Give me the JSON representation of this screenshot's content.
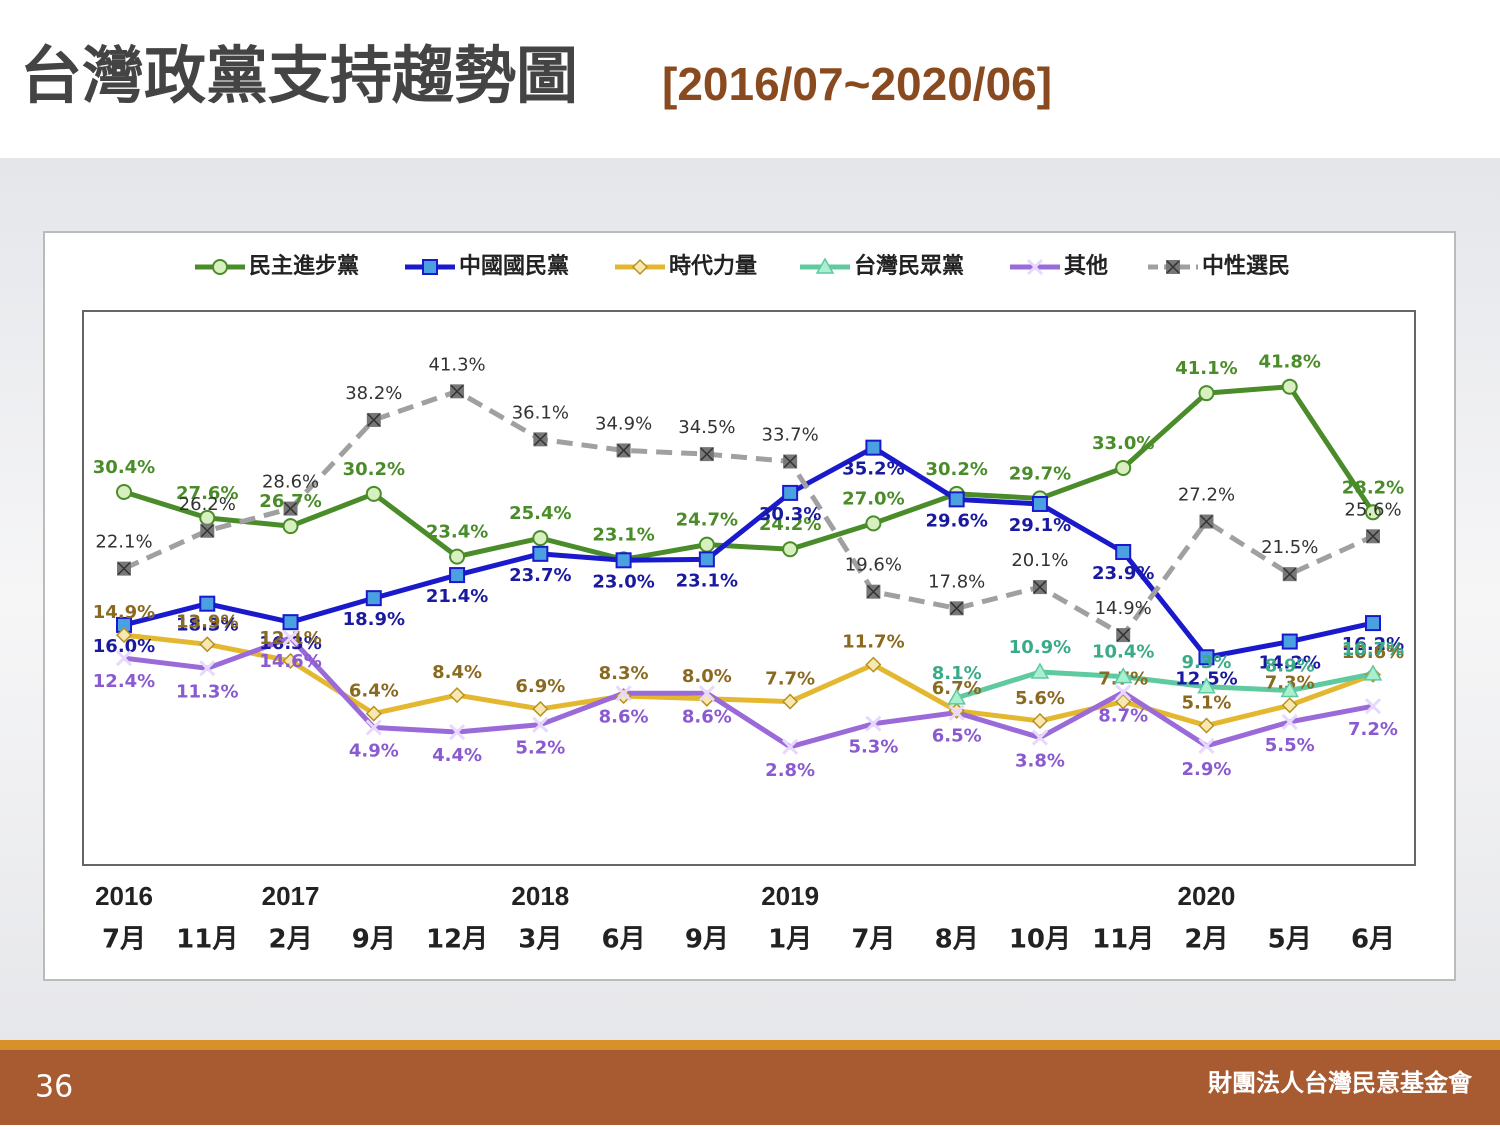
{
  "title": "台灣政黨支持趨勢圖",
  "subtitle": "[2016/07~2020/06]",
  "chart_data": {
    "type": "line",
    "categories": [
      "7月",
      "11月",
      "2月",
      "9月",
      "12月",
      "3月",
      "6月",
      "9月",
      "1月",
      "7月",
      "8月",
      "10月",
      "11月",
      "2月",
      "5月",
      "6月"
    ],
    "years": [
      "2016",
      null,
      "2017",
      null,
      null,
      "2018",
      null,
      null,
      "2019",
      null,
      null,
      null,
      null,
      "2020",
      null,
      null
    ],
    "ylim": [
      -10,
      50
    ],
    "series": [
      {
        "name": "民主進步黨",
        "color": "#4a8c2a",
        "marker": "circle",
        "values": [
          30.4,
          27.6,
          26.7,
          30.2,
          23.4,
          25.4,
          23.1,
          24.7,
          24.2,
          27.0,
          30.2,
          29.7,
          33.0,
          41.1,
          41.8,
          28.2
        ],
        "value_labels": [
          "30.4%",
          "27.6%",
          "26.7%",
          "30.2%",
          "23.4%",
          "25.4%",
          "23.1%",
          "24.7%",
          "24.2%",
          "27.0%",
          "30.2%",
          "29.7%",
          "33.0%",
          "41.1%",
          "41.8%",
          "28.2%"
        ]
      },
      {
        "name": "中國國民黨",
        "color": "#1a1acc",
        "marker": "square",
        "values": [
          16.0,
          18.3,
          16.3,
          18.9,
          21.4,
          23.7,
          23.0,
          23.1,
          30.3,
          35.2,
          29.6,
          29.1,
          23.9,
          12.5,
          14.2,
          16.2
        ],
        "value_labels": [
          "16.0%",
          "18.3%",
          "16.3%",
          "18.9%",
          "21.4%",
          "23.7%",
          "23.0%",
          "23.1%",
          "30.3%",
          "35.2%",
          "29.6%",
          "29.1%",
          "23.9%",
          "12.5%",
          "14.2%",
          "16.2%"
        ]
      },
      {
        "name": "時代力量",
        "color": "#e3b830",
        "marker": "diamond",
        "values": [
          14.9,
          13.9,
          12.1,
          6.4,
          8.4,
          6.9,
          8.3,
          8.0,
          7.7,
          11.7,
          6.7,
          5.6,
          7.7,
          5.1,
          7.3,
          10.6
        ],
        "value_labels": [
          "14.9%",
          "13.9%",
          "12.1%",
          "6.4%",
          "8.4%",
          "6.9%",
          "8.3%",
          "8.0%",
          "7.7%",
          "11.7%",
          "6.7%",
          "5.6%",
          "7.7%",
          "5.1%",
          "7.3%",
          "10.6%"
        ]
      },
      {
        "name": "台灣民眾黨",
        "color": "#5fc9a0",
        "marker": "triangle",
        "values": [
          null,
          null,
          null,
          null,
          null,
          null,
          null,
          null,
          null,
          null,
          8.1,
          10.9,
          10.4,
          9.3,
          8.9,
          10.7
        ],
        "value_labels": [
          null,
          null,
          null,
          null,
          null,
          null,
          null,
          null,
          null,
          null,
          "8.1%",
          "10.9%",
          "10.4%",
          "9.3%",
          "8.9%",
          "10.7%"
        ]
      },
      {
        "name": "其他",
        "color": "#9a6ad8",
        "marker": "cross",
        "values": [
          12.4,
          11.3,
          14.6,
          4.9,
          4.4,
          5.2,
          8.6,
          8.6,
          2.8,
          5.3,
          6.5,
          3.8,
          8.7,
          2.9,
          5.5,
          7.2
        ],
        "value_labels": [
          "12.4%",
          "11.3%",
          "14.6%",
          "4.9%",
          "4.4%",
          "5.2%",
          "8.6%",
          "8.6%",
          "2.8%",
          "5.3%",
          "6.5%",
          "3.8%",
          "8.7%",
          "2.9%",
          "5.5%",
          "7.2%"
        ]
      },
      {
        "name": "中性選民",
        "color": "#a0a0a0",
        "marker": "xsquare",
        "dashed": true,
        "values": [
          22.1,
          26.2,
          28.6,
          38.2,
          41.3,
          36.1,
          34.9,
          34.5,
          33.7,
          19.6,
          17.8,
          20.1,
          14.9,
          27.2,
          21.5,
          25.6
        ],
        "value_labels": [
          "22.1%",
          "26.2%",
          "28.6%",
          "38.2%",
          "41.3%",
          "36.1%",
          "34.9%",
          "34.5%",
          "33.7%",
          "19.6%",
          "17.8%",
          "20.1%",
          "14.9%",
          "27.2%",
          "21.5%",
          "25.6%"
        ]
      }
    ]
  },
  "footer": {
    "page": "36",
    "org": "財團法人台灣民意基金會"
  }
}
